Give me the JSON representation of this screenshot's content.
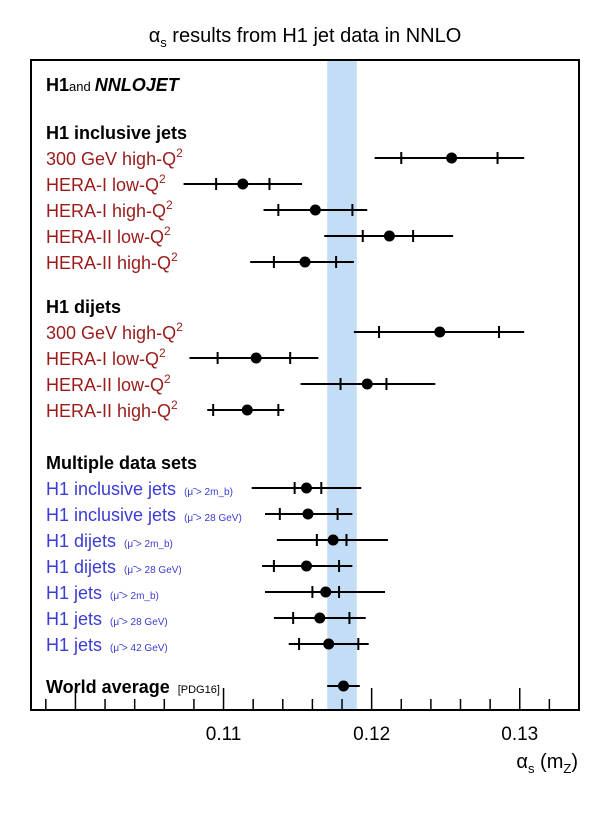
{
  "chart_data": {
    "type": "scatter",
    "title_symbol": "α",
    "title_sub": "s",
    "title_rest": " results from H1 jet data in NNLO",
    "brand": {
      "h1": "H1",
      "and": "and",
      "nnlojet": "NNLOJET"
    },
    "xlim": [
      0.097,
      0.134
    ],
    "xticks": [
      "0.11",
      "0.12",
      "0.13"
    ],
    "xtick_values": [
      0.11,
      0.12,
      0.13
    ],
    "xlabel": {
      "symbol": "α",
      "sub": "s",
      "open": " (m",
      "sub2": "Z",
      "close": ")"
    },
    "band": {
      "low": 0.117,
      "high": 0.119
    },
    "colors": {
      "red": "#9b1b1b",
      "blue": "#3b3bd6",
      "black": "#000000",
      "band": "#c3ddf7"
    },
    "sections": [
      {
        "heading": "H1 inclusive jets",
        "color": "red",
        "rows": [
          {
            "label": "300 GeV high-Q",
            "sup": "2",
            "note": "",
            "value": 0.1254,
            "inner": [
              0.122,
              0.1285
            ],
            "outer": [
              0.1202,
              0.1303
            ]
          },
          {
            "label": "HERA-I low-Q",
            "sup": "2",
            "note": "",
            "value": 0.1113,
            "inner": [
              0.1095,
              0.1131
            ],
            "outer": [
              0.1073,
              0.1153
            ]
          },
          {
            "label": "HERA-I high-Q",
            "sup": "2",
            "note": "",
            "value": 0.1162,
            "inner": [
              0.1137,
              0.1187
            ],
            "outer": [
              0.1127,
              0.1197
            ]
          },
          {
            "label": "HERA-II low-Q",
            "sup": "2",
            "note": "",
            "value": 0.1212,
            "inner": [
              0.1194,
              0.1228
            ],
            "outer": [
              0.1168,
              0.1255
            ]
          },
          {
            "label": "HERA-II high-Q",
            "sup": "2",
            "note": "",
            "value": 0.1155,
            "inner": [
              0.1134,
              0.1176
            ],
            "outer": [
              0.1118,
              0.1188
            ]
          }
        ]
      },
      {
        "heading": "H1 dijets",
        "color": "red",
        "rows": [
          {
            "label": "300 GeV high-Q",
            "sup": "2",
            "note": "",
            "value": 0.1246,
            "inner": [
              0.1205,
              0.1286
            ],
            "outer": [
              0.1188,
              0.1303
            ]
          },
          {
            "label": "HERA-I  low-Q",
            "sup": "2",
            "note": "",
            "value": 0.1122,
            "inner": [
              0.1096,
              0.1145
            ],
            "outer": [
              0.1077,
              0.1164
            ]
          },
          {
            "label": "HERA-II low-Q",
            "sup": "2",
            "note": "",
            "value": 0.1197,
            "inner": [
              0.1179,
              0.121
            ],
            "outer": [
              0.1152,
              0.1243
            ]
          },
          {
            "label": "HERA-II high-Q",
            "sup": "2",
            "note": "",
            "value": 0.1116,
            "inner": [
              0.1093,
              0.1137
            ],
            "outer": [
              0.1089,
              0.1141
            ]
          }
        ]
      },
      {
        "heading": "Multiple data sets",
        "color": "blue",
        "rows": [
          {
            "label": "H1 inclusive jets",
            "sup": "",
            "note": "(μ̃ > 2m_b)",
            "value": 0.1156,
            "inner": [
              0.1148,
              0.1166
            ],
            "outer": [
              0.1119,
              0.1193
            ]
          },
          {
            "label": "H1 inclusive jets",
            "sup": "",
            "note": "(μ̃ > 28 GeV)",
            "value": 0.1157,
            "inner": [
              0.1138,
              0.1177
            ],
            "outer": [
              0.1128,
              0.1187
            ]
          },
          {
            "label": "H1 dijets",
            "sup": "",
            "note": "(μ̃ > 2m_b)",
            "value": 0.1174,
            "inner": [
              0.1163,
              0.1183
            ],
            "outer": [
              0.1136,
              0.1211
            ]
          },
          {
            "label": "H1 dijets",
            "sup": "",
            "note": "(μ̃ > 28 GeV)",
            "value": 0.1156,
            "inner": [
              0.1134,
              0.1178
            ],
            "outer": [
              0.1126,
              0.1187
            ]
          },
          {
            "label": "H1 jets",
            "sup": "",
            "note": "(μ̃ > 2m_b)",
            "value": 0.1169,
            "inner": [
              0.116,
              0.1178
            ],
            "outer": [
              0.1128,
              0.1209
            ]
          },
          {
            "label": "H1 jets",
            "sup": "",
            "note": "(μ̃ > 28 GeV)",
            "value": 0.1165,
            "inner": [
              0.1147,
              0.1185
            ],
            "outer": [
              0.1134,
              0.1196
            ]
          },
          {
            "label": "H1 jets",
            "sup": "",
            "note": "(μ̃ > 42 GeV)",
            "value": 0.1171,
            "inner": [
              0.1151,
              0.1191
            ],
            "outer": [
              0.1144,
              0.1198
            ]
          }
        ]
      },
      {
        "heading": "",
        "color": "black",
        "rows": [
          {
            "label": "World average",
            "sup": "",
            "note": "[PDG16]",
            "value": 0.1181,
            "inner": [
              0.117,
              0.1192
            ],
            "outer": [
              0.117,
              0.1192
            ],
            "bold": true
          }
        ]
      }
    ]
  }
}
